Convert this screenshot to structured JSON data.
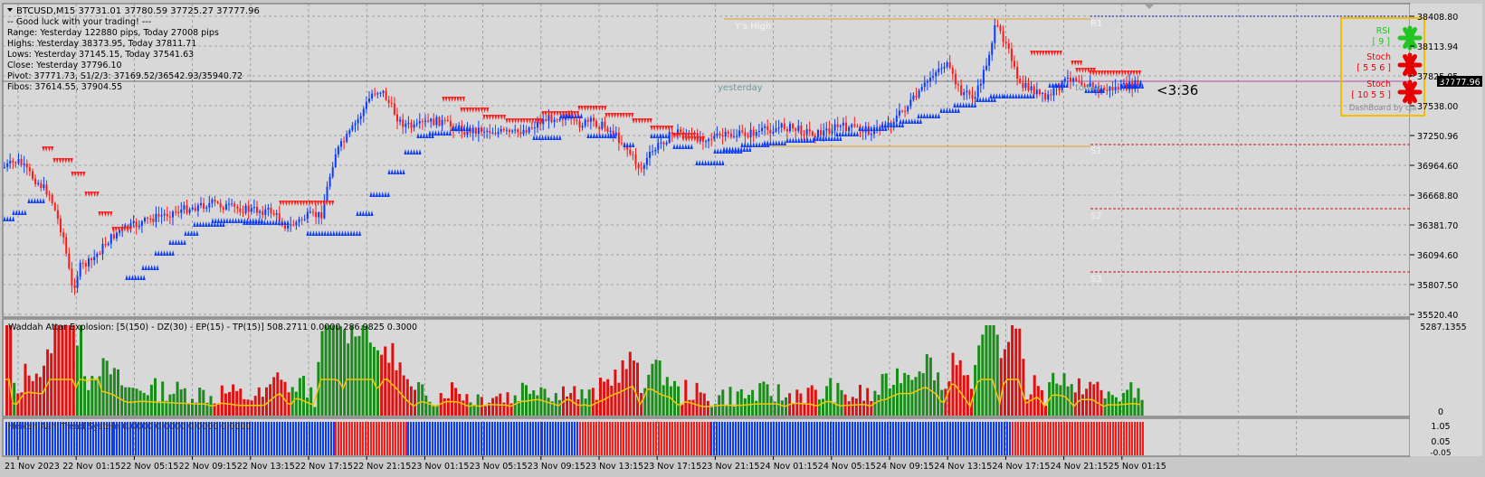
{
  "header": {
    "symbol_line": "BTCUSD,M15  37731.01 37780.59 37725.27 37777.96",
    "info_lines": [
      "-- Good luck with your trading! ---",
      "Range: Yesterday 122880 pips, Today 27008 pips",
      "Highs: Yesterday 38373.95, Today 37811.71",
      "Lows:  Yesterday 37145.15, Today 37541.63",
      "Close: Yesterday 37796.10",
      "Pivot: 37771.73,  S1/2/3: 37169.52/36542.93/35940.72",
      "Fibos: 37614.55, 37904.55"
    ]
  },
  "price_axis": {
    "labels": [
      "38408.80",
      "38113.94",
      "37825.05",
      "37538.00",
      "37250.96",
      "36964.60",
      "36668.80",
      "36381.70",
      "36094.60",
      "35807.50",
      "35520.40"
    ],
    "current_price": "37777.96"
  },
  "chart_overlay": {
    "ys_high_label": "Y's High",
    "r1_label": "R1",
    "yesterday_label": "yesterday",
    "today_label": "today",
    "s1_label": "S1",
    "s2_label": "S2",
    "s3_label": "S3",
    "countdown": "<3:36"
  },
  "dashboard": {
    "rows": [
      {
        "label": "RSI",
        "params": "[ 9 ]",
        "color": "#22c522"
      },
      {
        "label": "Stoch",
        "params": "[ 5 5 6 ]",
        "color": "#e80000"
      },
      {
        "label": "Stoch",
        "params": "[ 10 5 5 ]",
        "color": "#e80000"
      }
    ],
    "footer": "DashBoard by cja"
  },
  "indicator1": {
    "title": "Waddah Attar Explosion: [5(150) - DZ(30) - EP(15) - TP(15)] 508.2711 0.0000 286.9825 0.3000",
    "axis_top": "5287.1355",
    "axis_zero": "0"
  },
  "indicator2": {
    "title": "Heiken Ashi Trend System 0.0000 0.0000 0.0000 0.0000",
    "axis_top": "1.05",
    "axis_mid": "0.05",
    "axis_bot": "-0.05"
  },
  "time_axis": {
    "labels": [
      "21 Nov 2023",
      "22 Nov 01:15",
      "22 Nov 05:15",
      "22 Nov 09:15",
      "22 Nov 13:15",
      "22 Nov 17:15",
      "22 Nov 21:15",
      "23 Nov 01:15",
      "23 Nov 05:15",
      "23 Nov 09:15",
      "23 Nov 13:15",
      "23 Nov 17:15",
      "23 Nov 21:15",
      "24 Nov 01:15",
      "24 Nov 05:15",
      "24 Nov 09:15",
      "24 Nov 13:15",
      "24 Nov 17:15",
      "24 Nov 21:15",
      "25 Nov 01:15"
    ]
  },
  "colors": {
    "background": "#d8d8d8",
    "grid": "#8a9099",
    "bull": "#0a3bff",
    "bear": "#ff1a1a",
    "wae_green": "#1a8c1a",
    "wae_red": "#e01010",
    "wae_line": "#f0c800",
    "pivot_blue": "#1010c0",
    "sr_red": "#d01010",
    "orange_line": "#e0a020"
  }
}
